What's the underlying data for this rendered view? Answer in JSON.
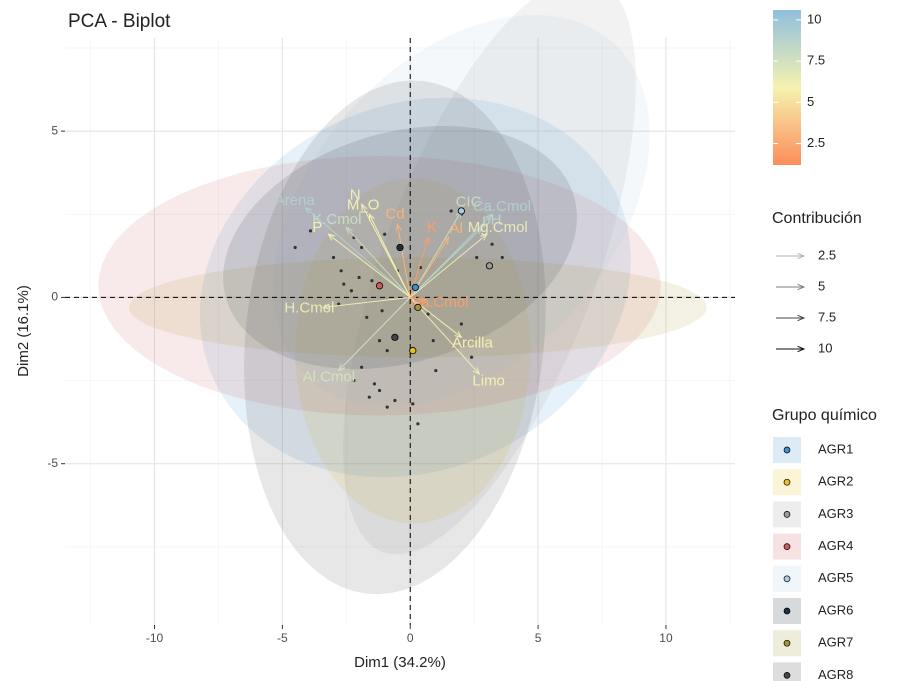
{
  "chart_data": {
    "type": "biplot",
    "title": "PCA - Biplot",
    "x_label": "Dim1 (34.2%)",
    "y_label": "Dim2 (16.1%)",
    "xlim": [
      -13.5,
      12.7
    ],
    "ylim": [
      -9.85,
      7.8
    ],
    "xticks": [
      -10,
      -5,
      0,
      5,
      10
    ],
    "yticks": [
      -5,
      0,
      5
    ],
    "grid": true,
    "contrib_title": "Contribución",
    "contrib_lim": [
      1.2,
      10.6
    ],
    "contrib_ticks": [
      2.5,
      5,
      7.5,
      10
    ],
    "contrib_colors": [
      "#fc8d59",
      "#f5f2b0",
      "#8fbfde"
    ],
    "group_title": "Grupo químico",
    "individuals": {
      "x": [
        -4.5,
        -3.9,
        -2.2,
        -1.9,
        -2.7,
        -3.0,
        -2.6,
        -2.0,
        -1.5,
        -2.8,
        -2.3,
        -1.1,
        -1.7,
        -1.2,
        -0.9,
        -1.9,
        -2.2,
        -1.4,
        -1.6,
        -0.9,
        -0.6,
        0.1,
        0.3,
        -1.2,
        0.9,
        1.0,
        2.4,
        2.0,
        2.6,
        3.2,
        3.6,
        1.6,
        2.0,
        -0.5,
        0.4,
        -1.0,
        0.7
      ],
      "y": [
        1.5,
        2.0,
        1.8,
        1.5,
        0.8,
        1.2,
        0.4,
        0.6,
        0.5,
        -0.2,
        0.2,
        -0.4,
        -0.6,
        -1.3,
        -1.6,
        -2.1,
        -2.5,
        -2.6,
        -3.0,
        -3.3,
        -3.1,
        -3.2,
        -3.8,
        -2.8,
        -1.3,
        -2.2,
        -1.8,
        -0.8,
        1.2,
        1.6,
        1.2,
        2.6,
        2.5,
        0.8,
        0.9,
        1.9,
        -0.5
      ]
    },
    "variables": {
      "names": [
        "Arena",
        "N",
        "M_O",
        "K.Cmol",
        "Cd",
        "K",
        "P",
        "CIC",
        "pH",
        "Ca.Cmol",
        "Al",
        "Mg.Cmol",
        "H.Cmol",
        "Al.Cmol",
        "Arcilla",
        "Limo",
        "Na.Cmol"
      ],
      "x": [
        -4.1,
        -1.9,
        -1.6,
        -2.5,
        -0.5,
        0.7,
        -3.2,
        2.0,
        2.8,
        3.2,
        1.5,
        3.0,
        -3.4,
        -2.8,
        2.0,
        2.7,
        0.6
      ],
      "y": [
        2.7,
        2.8,
        2.5,
        2.1,
        2.2,
        1.8,
        1.9,
        2.6,
        2.1,
        2.5,
        1.8,
        1.9,
        -0.3,
        -2.2,
        -1.2,
        -2.3,
        -0.1
      ],
      "contrib": [
        9.0,
        6.0,
        6.0,
        8.0,
        3.0,
        2.0,
        6.0,
        8.0,
        8.5,
        9.0,
        3.0,
        6.5,
        6.5,
        7.5,
        6.0,
        6.0,
        2.0
      ]
    },
    "groups": [
      {
        "name": "AGR1",
        "color": "#3f8fcf",
        "center": [
          0.2,
          0.3
        ],
        "ellipse": {
          "a": 8.5,
          "b": 5.6,
          "angle": 10
        }
      },
      {
        "name": "AGR2",
        "color": "#e6c21e",
        "center": [
          0.1,
          -1.6
        ],
        "ellipse": {
          "a": 5.2,
          "b": 4.6,
          "angle": 90
        }
      },
      {
        "name": "AGR3",
        "color": "#9a9a9a",
        "center": [
          3.1,
          0.95
        ],
        "ellipse": {
          "a": 9.6,
          "b": 4.0,
          "angle": 62
        }
      },
      {
        "name": "AGR4",
        "color": "#cc5c5c",
        "center": [
          -1.2,
          0.35
        ],
        "ellipse": {
          "a": 11.0,
          "b": 3.9,
          "angle": 0
        }
      },
      {
        "name": "AGR5",
        "color": "#a9cbe3",
        "center": [
          2.0,
          2.6
        ],
        "ellipse": {
          "a": 8.0,
          "b": 5.0,
          "angle": 30
        }
      },
      {
        "name": "AGR6",
        "color": "#1f2f40",
        "center": [
          -0.4,
          1.5
        ],
        "ellipse": {
          "a": 7.0,
          "b": 3.5,
          "angle": 10
        }
      },
      {
        "name": "AGR7",
        "color": "#a39530",
        "center": [
          0.3,
          -0.3
        ],
        "ellipse": {
          "a": 11.3,
          "b": 1.5,
          "angle": 0
        }
      },
      {
        "name": "AGR8",
        "color": "#444444",
        "center": [
          -0.6,
          -1.2
        ],
        "ellipse": {
          "a": 7.8,
          "b": 5.8,
          "angle": 78
        }
      }
    ]
  }
}
